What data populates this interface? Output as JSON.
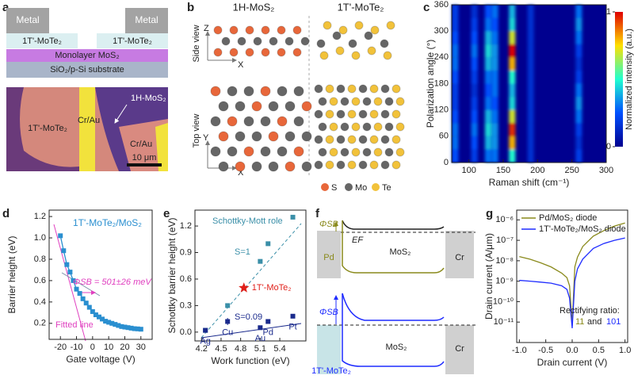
{
  "panel_labels": [
    "a",
    "b",
    "c",
    "d",
    "e",
    "f",
    "g"
  ],
  "panel_a": {
    "metal_left": "Metal",
    "metal_right": "Metal",
    "mote2_left": "1T'-MoTe₂",
    "mote2_right": "1T'-MoTe₂",
    "mos2": "Monolayer MoS₂",
    "substrate": "SiO₂/p-Si substrate",
    "image_labels": {
      "h_mos2": "1H-MoS₂",
      "t_mote2": "1T'-MoTe₂",
      "cr_au_1": "Cr/Au",
      "cr_au_2": "Cr/Au",
      "scale": "10 μm"
    }
  },
  "panel_b": {
    "col_1": "1H-MoS₂",
    "col_2": "1T'-MoTe₂",
    "side_view": "Side view",
    "top_view": "Top view",
    "axis_z": "Z",
    "axis_x_side": "X",
    "axis_y": "Y",
    "axis_x_top": "X",
    "legend": [
      "S",
      "Mo",
      "Te"
    ]
  },
  "panel_f": {
    "top": {
      "phi": "ΦSB",
      "ef": "EF",
      "left": "Pd",
      "middle": "MoS₂",
      "right": "Cr"
    },
    "bottom": {
      "phi": "ΦSB",
      "left": "1T'-MoTe₂",
      "middle": "MoS₂",
      "right": "Cr"
    }
  },
  "chart_data": [
    {
      "type": "heatmap",
      "xlabel": "Raman shift (cm⁻¹)",
      "ylabel": "Polarization angle (°)",
      "colorbar_label": "Normalized intensity (a.u.)",
      "colorbar_ticks": [
        0,
        1
      ],
      "xlim": [
        75,
        300
      ],
      "ylim": [
        0,
        360
      ],
      "xticks": [
        100,
        150,
        200,
        250,
        300
      ],
      "yticks": [
        0,
        60,
        120,
        180,
        240,
        300,
        360
      ],
      "x": [
        80,
        108,
        128,
        138,
        163,
        190,
        260
      ],
      "y": [
        15,
        45,
        75,
        105,
        135,
        165,
        195,
        225,
        255,
        285,
        315,
        345
      ],
      "values": [
        [
          0.25,
          0.3,
          0.3,
          0.25,
          0.2,
          0.2,
          0.25,
          0.3,
          0.3,
          0.25,
          0.2,
          0.2
        ],
        [
          0.2,
          0.25,
          0.3,
          0.25,
          0.2,
          0.15,
          0.2,
          0.25,
          0.3,
          0.25,
          0.2,
          0.15
        ],
        [
          0.3,
          0.4,
          0.45,
          0.4,
          0.3,
          0.25,
          0.3,
          0.4,
          0.45,
          0.4,
          0.3,
          0.25
        ],
        [
          0.3,
          0.35,
          0.35,
          0.3,
          0.25,
          0.3,
          0.3,
          0.35,
          0.35,
          0.3,
          0.25,
          0.3
        ],
        [
          0.5,
          0.8,
          0.95,
          0.7,
          0.45,
          0.4,
          0.5,
          0.8,
          1,
          0.7,
          0.45,
          0.4
        ],
        [
          0.15,
          0.15,
          0.15,
          0.15,
          0.15,
          0.15,
          0.15,
          0.15,
          0.15,
          0.15,
          0.15,
          0.15
        ],
        [
          0.2,
          0.15,
          0.2,
          0.3,
          0.35,
          0.3,
          0.2,
          0.15,
          0.2,
          0.3,
          0.35,
          0.3
        ]
      ]
    },
    {
      "type": "line",
      "xlabel": "Gate voltage (V)",
      "ylabel": "Barrier height (eV)",
      "color": "#2a8fd0",
      "annotations": {
        "title": "1T'-MoTe₂/MoS₂",
        "phi": "ΦSB = 501±26 meV",
        "fit": "Fitted line"
      },
      "xlim": [
        -27,
        37
      ],
      "ylim": [
        0.05,
        1.26
      ],
      "xticks": [
        -20,
        -10,
        0,
        10,
        20,
        30
      ],
      "yticks": [
        0.2,
        0.4,
        0.6,
        0.8,
        {
          "value": 1,
          "label": "1.0"
        },
        1.2
      ],
      "x": [
        -20,
        -18,
        -16,
        -14,
        -12,
        -10,
        -8,
        -6,
        -4,
        -2,
        0,
        2,
        4,
        6,
        8,
        10,
        12,
        14,
        16,
        18,
        20,
        22,
        24,
        26,
        28,
        30
      ],
      "values": [
        1.02,
        0.88,
        0.75,
        0.68,
        0.6,
        0.52,
        0.48,
        0.43,
        0.39,
        0.35,
        0.31,
        0.28,
        0.26,
        0.24,
        0.22,
        0.21,
        0.2,
        0.19,
        0.18,
        0.17,
        0.165,
        0.16,
        0.155,
        0.15,
        0.148,
        0.145
      ]
    },
    {
      "type": "scatter",
      "xlabel": "Work function (eV)",
      "ylabel": "Schottky barrier height (eV)",
      "annotations": {
        "s1": "S=1",
        "s009": "S=0.09"
      },
      "xlim": [
        4.1,
        5.8
      ],
      "ylim": [
        -0.1,
        1.38
      ],
      "xticks": [
        4.2,
        4.5,
        4.8,
        5.1,
        5.4
      ],
      "yticks": [
        {
          "value": 0,
          "label": "0.0"
        },
        0.3,
        0.6,
        0.9,
        1.2
      ],
      "series": [
        {
          "name": "Schottky-Mott role",
          "color": "#3a8fa8",
          "x": [
            4.26,
            4.6,
            5.1,
            5.22,
            5.6
          ],
          "values": [
            0.02,
            0.3,
            0.8,
            1,
            1.3
          ]
        },
        {
          "color": "#1a2a8c",
          "x": [
            4.26,
            4.6,
            5.1,
            5.22,
            5.6
          ],
          "values": [
            0.02,
            0.12,
            0.05,
            0.12,
            0.18
          ],
          "errors": [
            0.02,
            0.04,
            0.01,
            0.02,
            0.02
          ],
          "point_labels": [
            "Ag",
            "Cu",
            "Au",
            "Pd",
            "Pt"
          ]
        },
        {
          "name": "1T'-MoTe₂",
          "color": "#e0201a",
          "x": [
            4.85
          ],
          "values": [
            0.5
          ]
        }
      ]
    },
    {
      "type": "line",
      "xlabel": "Drain current (V)",
      "ylabel": "Drain current (A/μm)",
      "log_y": true,
      "annotations": {
        "ratio": "Rectifying ratio:",
        "r1": "11",
        "and": "and",
        "r2": "101"
      },
      "xlim": [
        -1.05,
        1.05
      ],
      "ylim": [
        1e-12,
        3e-06
      ],
      "xticks": [
        {
          "value": -1,
          "label": "-1.0"
        },
        -0.5,
        {
          "value": 0,
          "label": "0.0"
        },
        0.5,
        {
          "value": 1,
          "label": "1.0"
        }
      ],
      "yticks": [
        {
          "value": 1e-11,
          "label": "10⁻¹¹"
        },
        {
          "value": 1e-10,
          "label": "10⁻¹⁰"
        },
        {
          "value": 1e-09,
          "label": "10⁻⁹"
        },
        {
          "value": 1e-08,
          "label": "10⁻⁸"
        },
        {
          "value": 1e-07,
          "label": "10⁻⁷"
        },
        {
          "value": 1e-06,
          "label": "10⁻⁶"
        }
      ],
      "x": [
        -1,
        -0.8,
        -0.6,
        -0.4,
        -0.2,
        -0.1,
        -0.05,
        0,
        0.05,
        0.1,
        0.2,
        0.4,
        0.6,
        0.8,
        1
      ],
      "series": [
        {
          "name": "Pd/MoS₂ diode",
          "color": "#8a8a1c",
          "values": [
            1.6e-08,
            1.2e-08,
            8e-09,
            5e-09,
            2.5e-09,
            1.5e-09,
            6e-10,
            8e-12,
            5e-09,
            1.5e-08,
            5e-08,
            1.6e-07,
            3e-07,
            5e-07,
            7e-07
          ]
        },
        {
          "name": "1T'-MoTe₂/MoS₂ diode",
          "color": "#1f2cff",
          "values": [
            1.1e-09,
            1e-09,
            9e-10,
            8e-10,
            6e-10,
            4e-10,
            1.5e-10,
            5e-12,
            1e-09,
            4e-09,
            1.2e-08,
            4e-08,
            7e-08,
            1e-07,
            1.3e-07
          ]
        }
      ]
    }
  ]
}
